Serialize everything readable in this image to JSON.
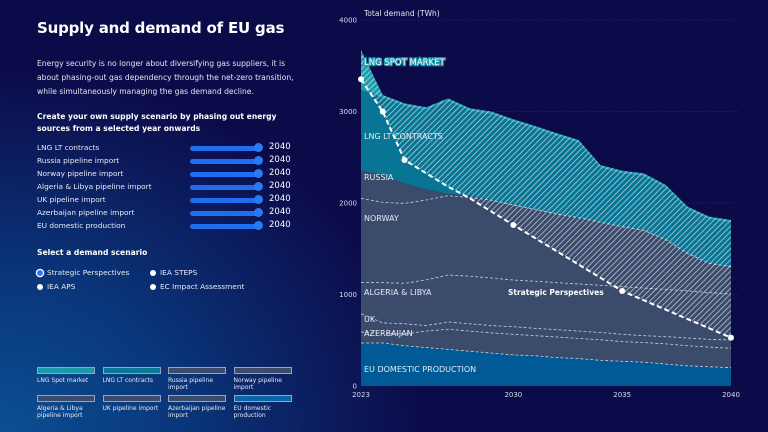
{
  "title": "Supply and demand of EU gas",
  "intro": "Energy security is no longer about diversifying gas suppliers, it is about phasing-out gas dependency through the net-zero transition, while simultaneously managing the gas demand decline.",
  "supply_heading": "Create your own supply scenario by phasing out energy sources from a selected year onwards",
  "supply_sliders": [
    {
      "label": "LNG LT contracts",
      "value": "2040"
    },
    {
      "label": "Russia pipeline import",
      "value": "2040"
    },
    {
      "label": "Norway pipeline import",
      "value": "2040"
    },
    {
      "label": "Algeria & Libya pipeline import",
      "value": "2040"
    },
    {
      "label": "UK pipeline import",
      "value": "2040"
    },
    {
      "label": "Azerbaijan pipeline import",
      "value": "2040"
    },
    {
      "label": "EU domestic production",
      "value": "2040"
    }
  ],
  "demand_heading": "Select a demand scenario",
  "demand_options": [
    {
      "label": "Strategic Perspectives",
      "selected": true
    },
    {
      "label": "IEA STEPS",
      "selected": false
    },
    {
      "label": "IEA APS",
      "selected": false
    },
    {
      "label": "EC Impact Assessment",
      "selected": false
    }
  ],
  "legend": [
    {
      "label": "LNG Spot market",
      "color": "#1a9aa8"
    },
    {
      "label": "LNG LT contracts",
      "color": "#0b7895"
    },
    {
      "label": "Russia pipeline import",
      "color": "#3d4a6a"
    },
    {
      "label": "Norway pipeline import",
      "color": "#3d4a6a"
    },
    {
      "label": "Algeria & Libya pipeline import",
      "color": "#3d4a6a"
    },
    {
      "label": "UK pipeline import",
      "color": "#3d4a6a"
    },
    {
      "label": "Azerbaijan pipeline import",
      "color": "#3d4a6a"
    },
    {
      "label": "EU domestic production",
      "color": "#0a64a8"
    }
  ],
  "chart_data": {
    "type": "area",
    "stacked": true,
    "ylabel": "Total demand (TWh)",
    "ylim": [
      0,
      4000
    ],
    "yticks": [
      "0",
      "1000",
      "2000",
      "3000",
      "4000"
    ],
    "xlim": [
      2023,
      2040
    ],
    "xticks": [
      "2023",
      "2030",
      "2035",
      "2040"
    ],
    "grid": true,
    "x": [
      2023,
      2024,
      2025,
      2026,
      2027,
      2028,
      2029,
      2030,
      2031,
      2032,
      2033,
      2034,
      2035,
      2036,
      2037,
      2038,
      2039,
      2040
    ],
    "series": [
      {
        "name": "EU DOMESTIC PRODUCTION",
        "color": "#005a96",
        "values": [
          470,
          470,
          440,
          420,
          400,
          380,
          360,
          340,
          330,
          310,
          300,
          280,
          270,
          260,
          240,
          220,
          210,
          200
        ]
      },
      {
        "name": "AZERBAIJAN",
        "color": "#3b4b6c",
        "values": [
          120,
          105,
          130,
          180,
          220,
          220,
          220,
          225,
          220,
          225,
          220,
          225,
          215,
          215,
          220,
          220,
          215,
          212
        ]
      },
      {
        "name": "UK",
        "color": "#3b4b6c",
        "values": [
          200,
          115,
          110,
          60,
          80,
          80,
          80,
          83,
          80,
          80,
          80,
          80,
          80,
          75,
          80,
          85,
          85,
          91
        ]
      },
      {
        "name": "ALGERIA & LIBYA",
        "color": "#3b4b6c",
        "values": [
          343,
          440,
          442,
          500,
          513,
          520,
          520,
          510,
          515,
          515,
          515,
          515,
          521,
          520,
          515,
          515,
          510,
          502
        ]
      },
      {
        "name": "NORWAY",
        "color": "#3b4b6c",
        "values": [
          918,
          877,
          874,
          873,
          867,
          860,
          850,
          820,
          785,
          750,
          725,
          690,
          655,
          630,
          545,
          410,
          320,
          299
        ]
      },
      {
        "name": "RUSSIA",
        "color": "#3b4b6c",
        "values": [
          310,
          293,
          219,
          117,
          20,
          20,
          0,
          0,
          0,
          0,
          0,
          0,
          0,
          0,
          0,
          0,
          0,
          0
        ]
      },
      {
        "name": "LNG LT CONTRACTS",
        "color": "#087595",
        "values": [
          874,
          850,
          844,
          866,
          1014,
          925,
          939,
          907,
          882,
          852,
          819,
          595,
          582,
          594,
          567,
          480,
          481,
          480
        ]
      },
      {
        "name": "LNG SPOT MARKET",
        "color": "#1c9cae",
        "values": [
          437,
          30,
          30,
          30,
          30,
          30,
          30,
          30,
          30,
          30,
          30,
          30,
          30,
          30,
          30,
          30,
          30,
          30
        ]
      }
    ],
    "demand_line": {
      "name": "Strategic Perspectives",
      "values": [
        3352,
        2998,
        2470,
        2324,
        2178,
        2051,
        1905,
        1760,
        1616,
        1472,
        1327,
        1183,
        1038,
        936,
        834,
        732,
        630,
        528
      ],
      "markers": [
        2023,
        2024,
        2025,
        2030,
        2035,
        2040
      ]
    }
  }
}
